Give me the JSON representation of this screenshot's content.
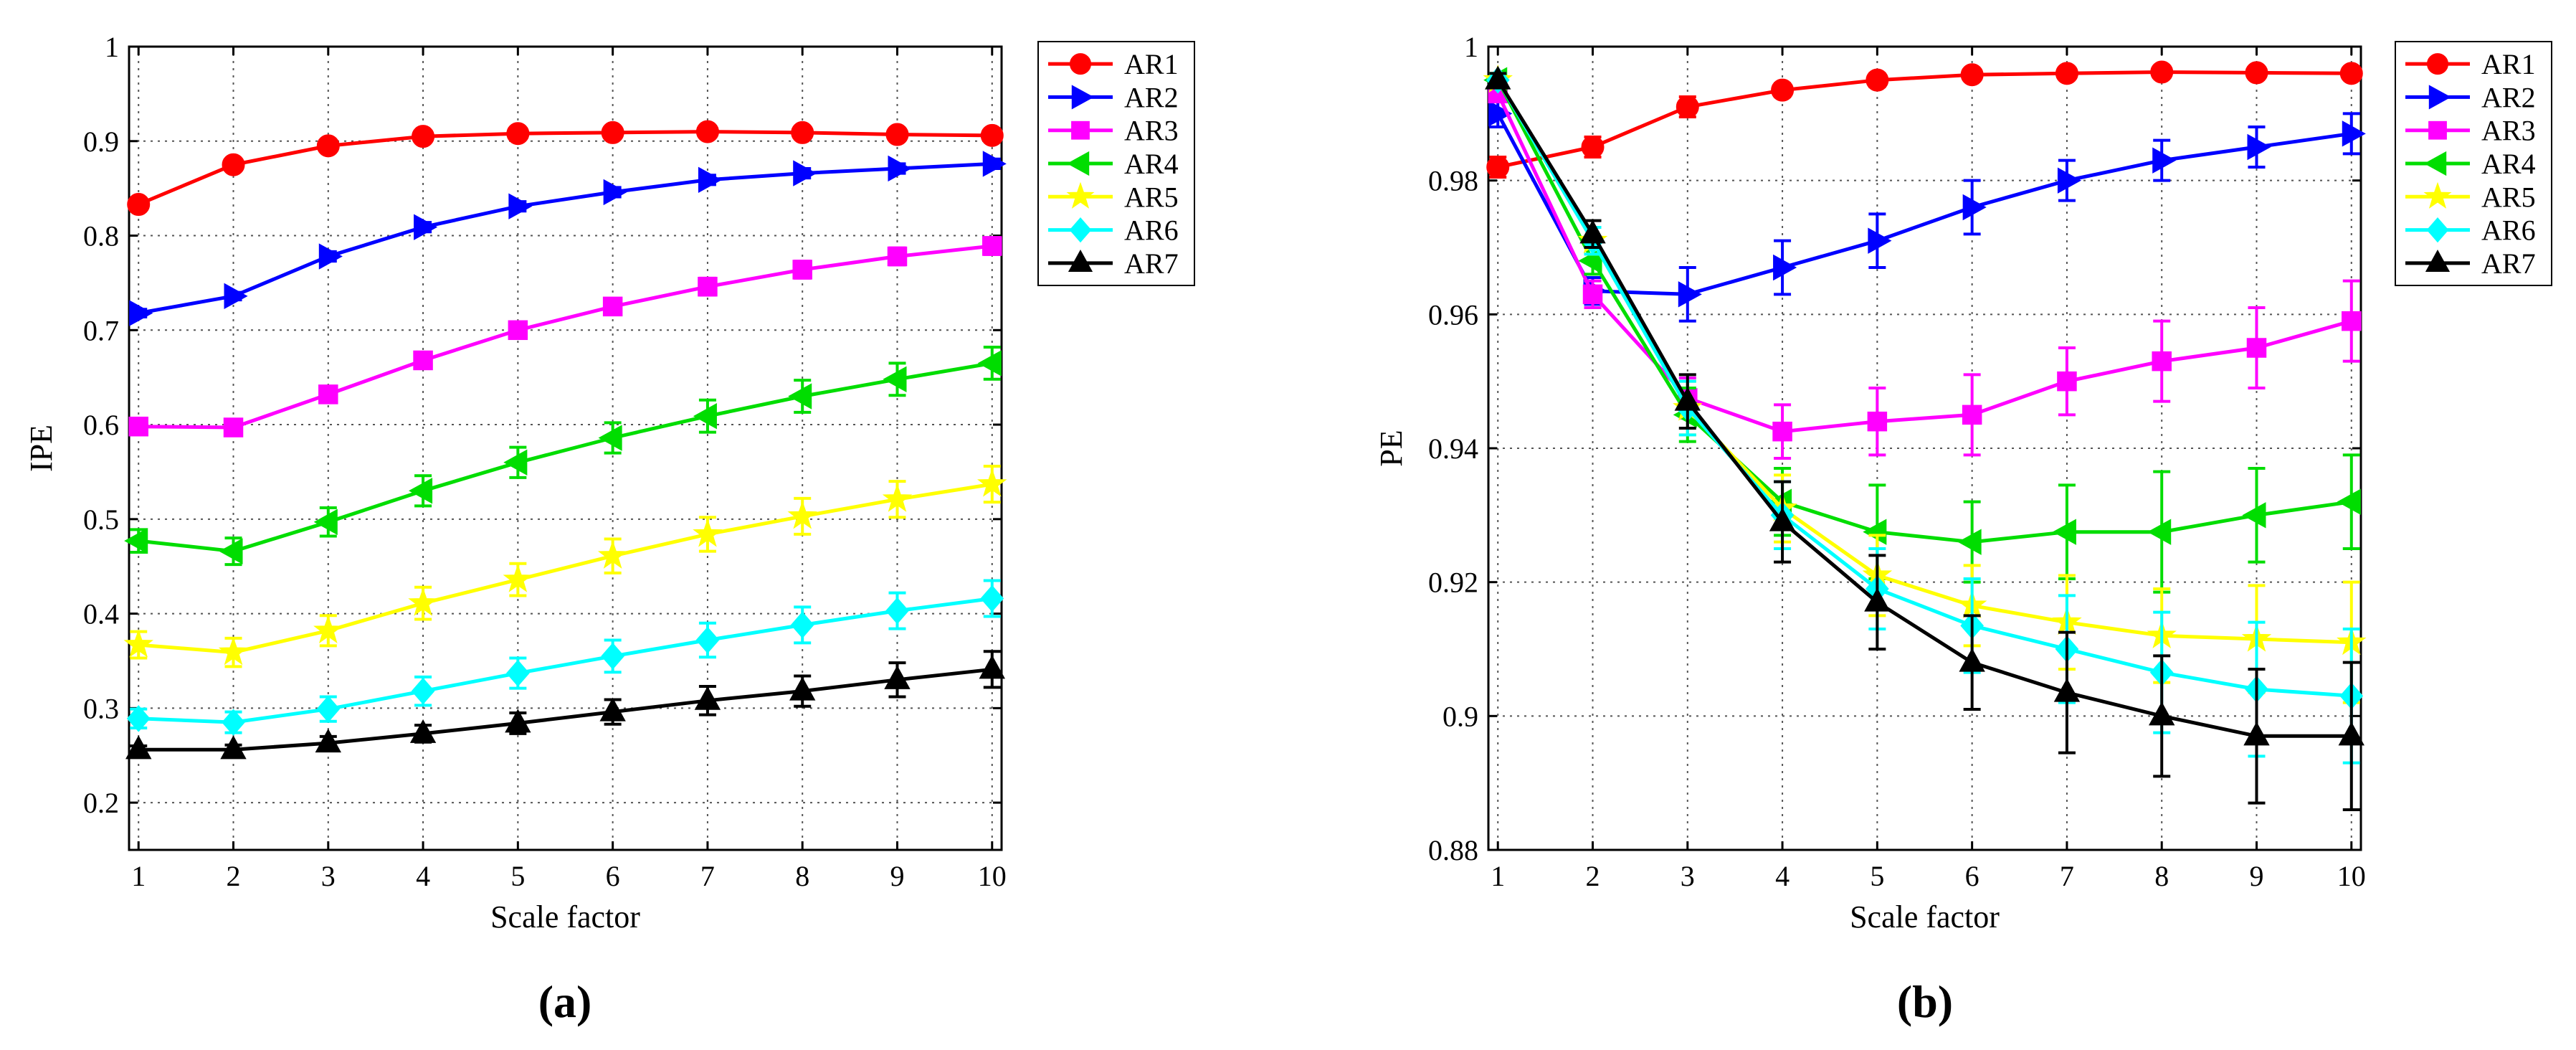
{
  "chart_data": [
    {
      "type": "line",
      "panel_label": "(a)",
      "xlabel": "Scale factor",
      "ylabel": "IPE",
      "x": [
        1,
        2,
        3,
        4,
        5,
        6,
        7,
        8,
        9,
        10
      ],
      "xlim": [
        0.9,
        10.1
      ],
      "ylim": [
        0.15,
        1.0
      ],
      "xticks": [
        1,
        2,
        3,
        4,
        5,
        6,
        7,
        8,
        9,
        10
      ],
      "yticks": [
        0.2,
        0.3,
        0.4,
        0.5,
        0.6,
        0.7,
        0.8,
        0.9,
        1
      ],
      "ytick_labels": [
        "0.2",
        "0.3",
        "0.4",
        "0.5",
        "0.6",
        "0.7",
        "0.8",
        "0.9",
        "1"
      ],
      "grid": true,
      "legend_position": "outside-right-top",
      "series": [
        {
          "name": "AR1",
          "color": "#ff0000",
          "marker": "circle",
          "values": [
            0.833,
            0.875,
            0.895,
            0.905,
            0.908,
            0.909,
            0.91,
            0.909,
            0.907,
            0.906
          ],
          "errors": [
            0.003,
            0.003,
            0.003,
            0.003,
            0.003,
            0.003,
            0.003,
            0.003,
            0.003,
            0.003
          ]
        },
        {
          "name": "AR2",
          "color": "#0000ff",
          "marker": "triangle-right",
          "values": [
            0.718,
            0.736,
            0.778,
            0.809,
            0.831,
            0.846,
            0.859,
            0.866,
            0.871,
            0.876
          ],
          "errors": [
            0.004,
            0.004,
            0.005,
            0.005,
            0.005,
            0.005,
            0.005,
            0.005,
            0.005,
            0.005
          ]
        },
        {
          "name": "AR3",
          "color": "#ff00ff",
          "marker": "square",
          "values": [
            0.598,
            0.597,
            0.632,
            0.668,
            0.7,
            0.725,
            0.746,
            0.764,
            0.778,
            0.789
          ],
          "errors": [
            0.006,
            0.006,
            0.007,
            0.008,
            0.008,
            0.008,
            0.009,
            0.009,
            0.009,
            0.009
          ]
        },
        {
          "name": "AR4",
          "color": "#00dd00",
          "marker": "triangle-left",
          "values": [
            0.477,
            0.466,
            0.497,
            0.53,
            0.56,
            0.586,
            0.609,
            0.63,
            0.648,
            0.665
          ],
          "errors": [
            0.012,
            0.014,
            0.015,
            0.016,
            0.016,
            0.016,
            0.017,
            0.017,
            0.017,
            0.017
          ]
        },
        {
          "name": "AR5",
          "color": "#ffff00",
          "marker": "star",
          "values": [
            0.367,
            0.359,
            0.382,
            0.411,
            0.436,
            0.461,
            0.484,
            0.503,
            0.521,
            0.537
          ],
          "errors": [
            0.014,
            0.015,
            0.016,
            0.017,
            0.017,
            0.018,
            0.018,
            0.019,
            0.019,
            0.019
          ]
        },
        {
          "name": "AR6",
          "color": "#00ffff",
          "marker": "diamond",
          "values": [
            0.289,
            0.285,
            0.299,
            0.318,
            0.337,
            0.355,
            0.372,
            0.388,
            0.403,
            0.416
          ],
          "errors": [
            0.01,
            0.011,
            0.013,
            0.015,
            0.016,
            0.017,
            0.018,
            0.019,
            0.019,
            0.019
          ]
        },
        {
          "name": "AR7",
          "color": "#000000",
          "marker": "triangle-up",
          "values": [
            0.256,
            0.256,
            0.263,
            0.273,
            0.284,
            0.296,
            0.308,
            0.318,
            0.33,
            0.341
          ],
          "errors": [
            0.004,
            0.005,
            0.007,
            0.009,
            0.011,
            0.013,
            0.015,
            0.016,
            0.018,
            0.019
          ]
        }
      ]
    },
    {
      "type": "line",
      "panel_label": "(b)",
      "xlabel": "Scale factor",
      "ylabel": "PE",
      "x": [
        1,
        2,
        3,
        4,
        5,
        6,
        7,
        8,
        9,
        10
      ],
      "xlim": [
        0.9,
        10.1
      ],
      "ylim": [
        0.88,
        1.0
      ],
      "xticks": [
        1,
        2,
        3,
        4,
        5,
        6,
        7,
        8,
        9,
        10
      ],
      "yticks": [
        0.88,
        0.9,
        0.92,
        0.94,
        0.96,
        0.98,
        1
      ],
      "ytick_labels": [
        "0.88",
        "0.9",
        "0.92",
        "0.94",
        "0.96",
        "0.98",
        "1"
      ],
      "grid": true,
      "legend_position": "outside-right-top",
      "series": [
        {
          "name": "AR1",
          "color": "#ff0000",
          "marker": "circle",
          "values": [
            0.982,
            0.985,
            0.991,
            0.9935,
            0.995,
            0.9958,
            0.996,
            0.9962,
            0.9961,
            0.996
          ],
          "errors": [
            0.0015,
            0.0015,
            0.0015,
            0.001,
            0.001,
            0.0008,
            0.0008,
            0.0008,
            0.0008,
            0.0008
          ]
        },
        {
          "name": "AR2",
          "color": "#0000ff",
          "marker": "triangle-right",
          "values": [
            0.99,
            0.9635,
            0.963,
            0.967,
            0.971,
            0.976,
            0.98,
            0.983,
            0.985,
            0.987
          ],
          "errors": [
            0.002,
            0.002,
            0.004,
            0.004,
            0.004,
            0.004,
            0.003,
            0.003,
            0.003,
            0.003
          ]
        },
        {
          "name": "AR3",
          "color": "#ff00ff",
          "marker": "square",
          "values": [
            0.993,
            0.963,
            0.9475,
            0.9425,
            0.944,
            0.945,
            0.95,
            0.953,
            0.955,
            0.959
          ],
          "errors": [
            0.001,
            0.002,
            0.003,
            0.004,
            0.005,
            0.006,
            0.005,
            0.006,
            0.006,
            0.006
          ]
        },
        {
          "name": "AR4",
          "color": "#00dd00",
          "marker": "triangle-left",
          "values": [
            0.995,
            0.968,
            0.945,
            0.932,
            0.9275,
            0.926,
            0.9275,
            0.9275,
            0.93,
            0.932
          ],
          "errors": [
            0.001,
            0.002,
            0.004,
            0.005,
            0.007,
            0.006,
            0.007,
            0.009,
            0.007,
            0.007
          ]
        },
        {
          "name": "AR5",
          "color": "#ffff00",
          "marker": "star",
          "values": [
            0.995,
            0.971,
            0.946,
            0.931,
            0.921,
            0.9165,
            0.914,
            0.912,
            0.9115,
            0.911
          ],
          "errors": [
            0.001,
            0.002,
            0.004,
            0.005,
            0.006,
            0.006,
            0.007,
            0.007,
            0.008,
            0.009
          ]
        },
        {
          "name": "AR6",
          "color": "#00ffff",
          "marker": "diamond",
          "values": [
            0.995,
            0.971,
            0.946,
            0.93,
            0.919,
            0.9135,
            0.91,
            0.9065,
            0.904,
            0.903
          ],
          "errors": [
            0.001,
            0.002,
            0.004,
            0.005,
            0.006,
            0.007,
            0.008,
            0.009,
            0.01,
            0.01
          ]
        },
        {
          "name": "AR7",
          "color": "#000000",
          "marker": "triangle-up",
          "values": [
            0.995,
            0.972,
            0.947,
            0.929,
            0.917,
            0.908,
            0.9035,
            0.9,
            0.897,
            0.897
          ],
          "errors": [
            0.001,
            0.002,
            0.004,
            0.006,
            0.007,
            0.007,
            0.009,
            0.009,
            0.01,
            0.011
          ]
        }
      ]
    }
  ]
}
